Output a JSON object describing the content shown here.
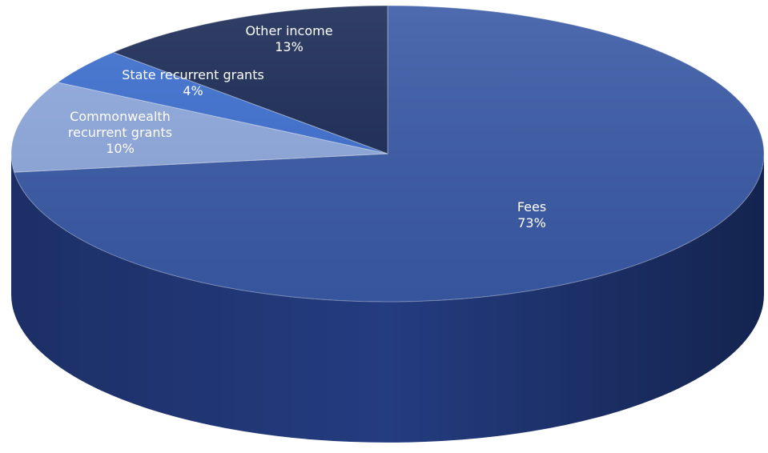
{
  "chart_data": {
    "type": "pie",
    "style": "3d",
    "slices": [
      {
        "label": "Fees",
        "value": 73,
        "percent_label": "73%",
        "color": "#3a5aa6"
      },
      {
        "label": "Commonwealth recurrent grants",
        "label_lines": [
          "Commonwealth",
          "recurrent grants"
        ],
        "value": 10,
        "percent_label": "10%",
        "color": "#8ea8dc"
      },
      {
        "label": "State recurrent grants",
        "value": 4,
        "percent_label": "4%",
        "color": "#3d6fcf"
      },
      {
        "label": "Other income",
        "value": 13,
        "percent_label": "13%",
        "color": "#1a2a55"
      }
    ],
    "legend": "none"
  }
}
